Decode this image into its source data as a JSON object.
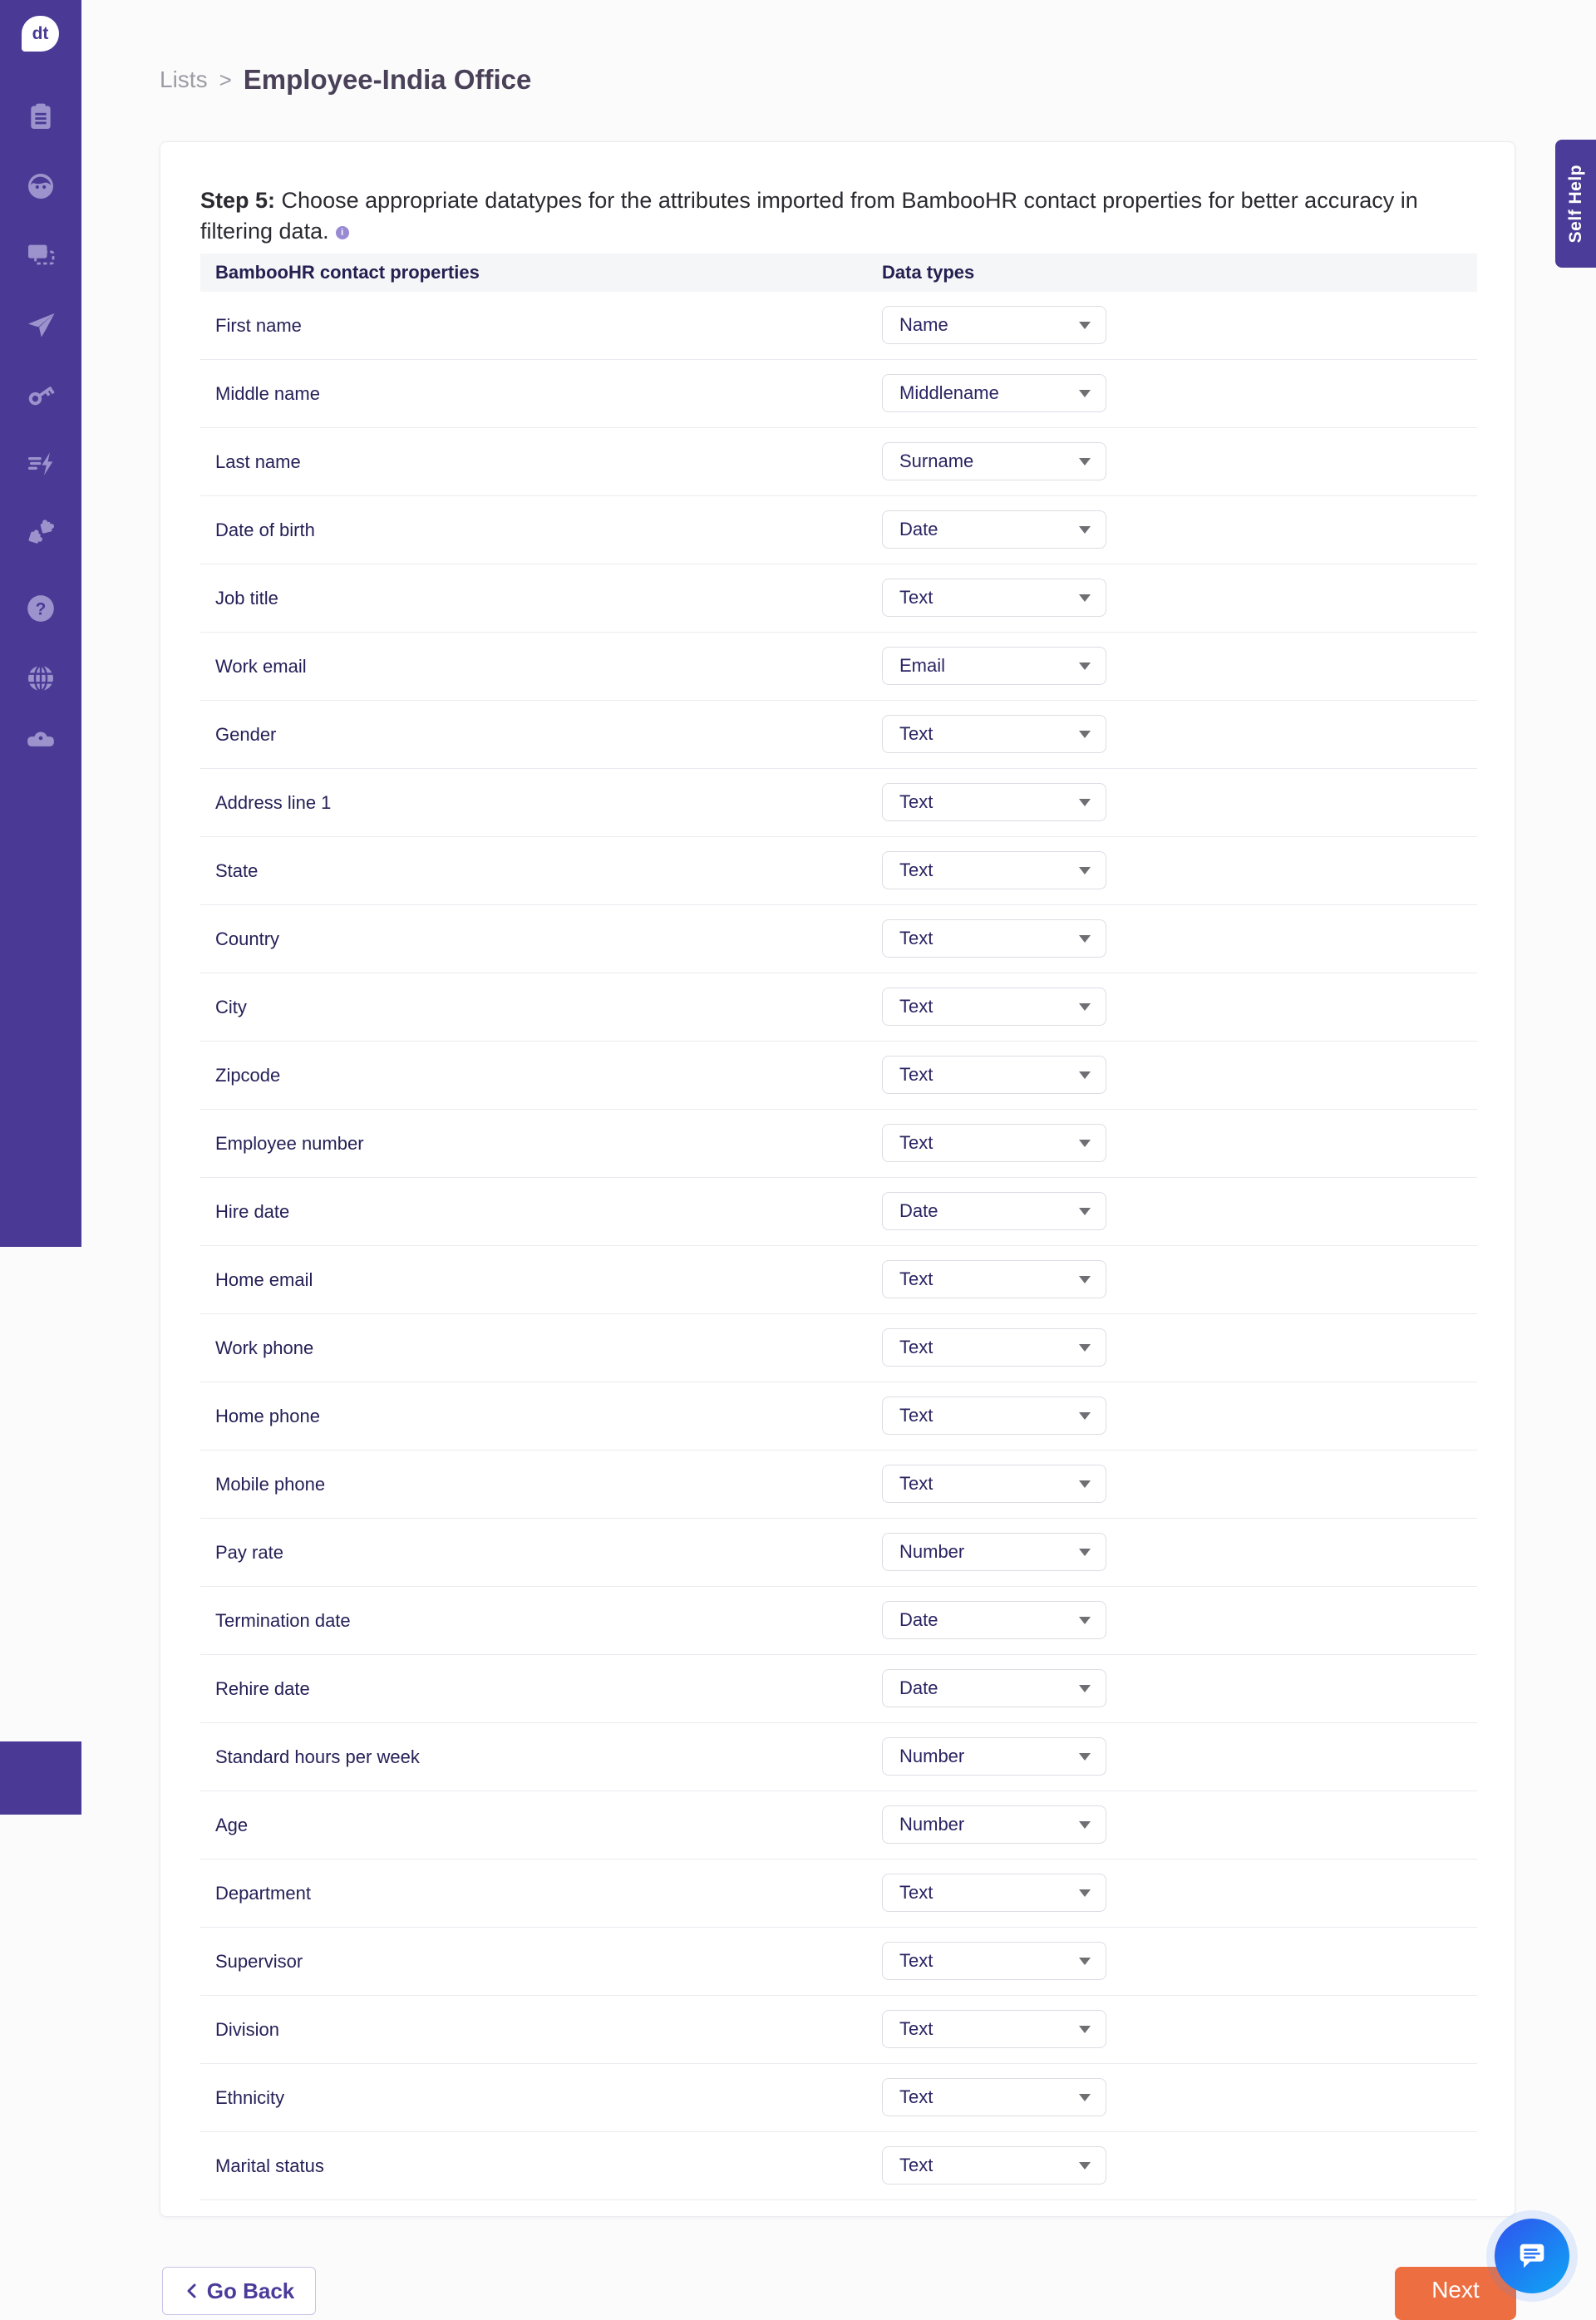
{
  "app": {
    "logo_text": "dt"
  },
  "breadcrumb": {
    "parent": "Lists",
    "separator": ">",
    "current": "Employee-India Office"
  },
  "self_help": {
    "label": "Self Help"
  },
  "step": {
    "label": "Step 5:",
    "description": "Choose appropriate datatypes for the attributes imported from BambooHR contact properties for better accuracy in filtering data.",
    "info_icon_glyph": "i"
  },
  "table": {
    "columns": [
      "BambooHR contact properties",
      "Data types"
    ],
    "rows": [
      {
        "property": "First name",
        "datatype": "Name"
      },
      {
        "property": "Middle name",
        "datatype": "Middlename"
      },
      {
        "property": "Last name",
        "datatype": "Surname"
      },
      {
        "property": "Date of birth",
        "datatype": "Date"
      },
      {
        "property": "Job title",
        "datatype": "Text"
      },
      {
        "property": "Work email",
        "datatype": "Email"
      },
      {
        "property": "Gender",
        "datatype": "Text"
      },
      {
        "property": "Address line 1",
        "datatype": "Text"
      },
      {
        "property": "State",
        "datatype": "Text"
      },
      {
        "property": "Country",
        "datatype": "Text"
      },
      {
        "property": "City",
        "datatype": "Text"
      },
      {
        "property": "Zipcode",
        "datatype": "Text"
      },
      {
        "property": "Employee number",
        "datatype": "Text"
      },
      {
        "property": "Hire date",
        "datatype": "Date"
      },
      {
        "property": "Home email",
        "datatype": "Text"
      },
      {
        "property": "Work phone",
        "datatype": "Text"
      },
      {
        "property": "Home phone",
        "datatype": "Text"
      },
      {
        "property": "Mobile phone",
        "datatype": "Text"
      },
      {
        "property": "Pay rate",
        "datatype": "Number"
      },
      {
        "property": "Termination date",
        "datatype": "Date"
      },
      {
        "property": "Rehire date",
        "datatype": "Date"
      },
      {
        "property": "Standard hours per week",
        "datatype": "Number"
      },
      {
        "property": "Age",
        "datatype": "Number"
      },
      {
        "property": "Department",
        "datatype": "Text"
      },
      {
        "property": "Supervisor",
        "datatype": "Text"
      },
      {
        "property": "Division",
        "datatype": "Text"
      },
      {
        "property": "Ethnicity",
        "datatype": "Text"
      },
      {
        "property": "Marital status",
        "datatype": "Text"
      }
    ]
  },
  "footer": {
    "go_back": "Go Back",
    "next": "Next"
  },
  "sidebar_icons": [
    "clipboard-icon",
    "persona-icon",
    "screens-icon",
    "paper-plane-icon",
    "key-icon",
    "automation-bolt-icon",
    "puzzle-icon",
    "help-icon",
    "globe-icon",
    "car-icon"
  ],
  "colors": {
    "sidebar_purple": "#4a3a95",
    "self_help_purple": "#4c3c99",
    "next_orange": "#ec6e41",
    "chat_blue_start": "#2e57ee",
    "chat_blue_end": "#0fa3f5",
    "link_purple": "#4b3b9a",
    "table_header_bg": "#f5f6f8",
    "row_text_navy": "#252057"
  }
}
